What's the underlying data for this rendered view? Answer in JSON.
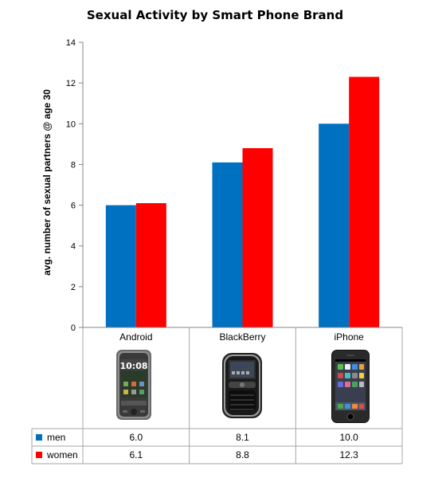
{
  "chart_data": {
    "type": "bar",
    "title": "Sexual Activity by Smart Phone Brand",
    "ylabel": "avg. number of sexual partners @ age 30",
    "xlabel": "",
    "ylim": [
      0,
      14
    ],
    "yticks": [
      0,
      2,
      4,
      6,
      8,
      10,
      12,
      14
    ],
    "grid": false,
    "categories": [
      "Android",
      "BlackBerry",
      "iPhone"
    ],
    "series": [
      {
        "name": "men",
        "values": [
          6.0,
          8.1,
          10.0
        ],
        "labels": [
          "6.0",
          "8.1",
          "10.0"
        ],
        "color": "#0070C0"
      },
      {
        "name": "women",
        "values": [
          6.1,
          8.8,
          12.3
        ],
        "labels": [
          "6.1",
          "8.8",
          "12.3"
        ],
        "color": "#FF0000"
      }
    ],
    "category_images": [
      "android-phone-icon",
      "blackberry-phone-icon",
      "iphone-icon"
    ],
    "data_table": true
  }
}
